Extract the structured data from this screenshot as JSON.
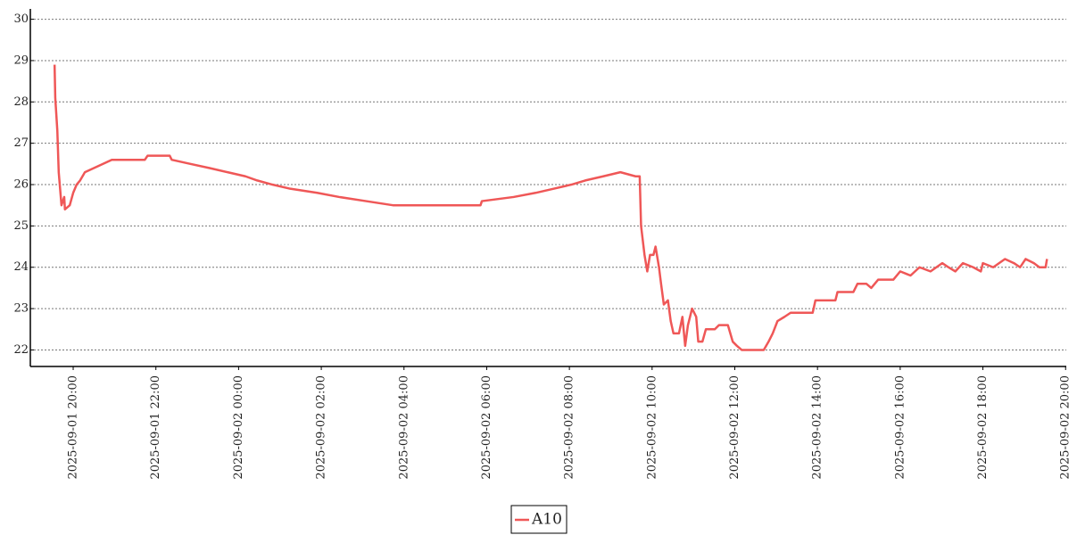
{
  "chart_data": {
    "type": "line",
    "x": [
      "2025-09-01 19:33",
      "2025-09-01 19:34",
      "2025-09-01 19:37",
      "2025-09-01 19:39",
      "2025-09-01 19:41",
      "2025-09-01 19:43",
      "2025-09-01 19:47",
      "2025-09-01 19:48",
      "2025-09-01 19:55",
      "2025-09-01 20:00",
      "2025-09-01 20:05",
      "2025-09-01 20:10",
      "2025-09-01 20:17",
      "2025-09-01 20:30",
      "2025-09-01 20:43",
      "2025-09-01 20:56",
      "2025-09-01 21:44",
      "2025-09-01 21:48",
      "2025-09-01 22:20",
      "2025-09-01 22:23",
      "2025-09-01 22:50",
      "2025-09-01 23:18",
      "2025-09-01 23:44",
      "2025-09-02 00:10",
      "2025-09-02 00:27",
      "2025-09-02 00:49",
      "2025-09-02 01:15",
      "2025-09-02 01:54",
      "2025-09-02 02:26",
      "2025-09-02 03:05",
      "2025-09-02 03:44",
      "2025-09-02 05:51",
      "2025-09-02 05:53",
      "2025-09-02 06:39",
      "2025-09-02 07:11",
      "2025-09-02 07:37",
      "2025-09-02 08:03",
      "2025-09-02 08:23",
      "2025-09-02 08:49",
      "2025-09-02 09:14",
      "2025-09-02 09:36",
      "2025-09-02 09:42",
      "2025-09-02 09:44",
      "2025-09-02 09:49",
      "2025-09-02 09:53",
      "2025-09-02 09:57",
      "2025-09-02 10:02",
      "2025-09-02 10:05",
      "2025-09-02 10:10",
      "2025-09-02 10:13",
      "2025-09-02 10:17",
      "2025-09-02 10:23",
      "2025-09-02 10:27",
      "2025-09-02 10:31",
      "2025-09-02 10:39",
      "2025-09-02 10:44",
      "2025-09-02 10:48",
      "2025-09-02 10:52",
      "2025-09-02 10:58",
      "2025-09-02 11:04",
      "2025-09-02 11:07",
      "2025-09-02 11:13",
      "2025-09-02 11:18",
      "2025-09-02 11:31",
      "2025-09-02 11:37",
      "2025-09-02 11:50",
      "2025-09-02 11:57",
      "2025-09-02 12:03",
      "2025-09-02 12:10",
      "2025-09-02 12:42",
      "2025-09-02 12:49",
      "2025-09-02 12:55",
      "2025-09-02 13:02",
      "2025-09-02 13:12",
      "2025-09-02 13:21",
      "2025-09-02 13:53",
      "2025-09-02 13:57",
      "2025-09-02 14:26",
      "2025-09-02 14:29",
      "2025-09-02 14:52",
      "2025-09-02 14:58",
      "2025-09-02 15:11",
      "2025-09-02 15:18",
      "2025-09-02 15:28",
      "2025-09-02 15:50",
      "2025-09-02 16:00",
      "2025-09-02 16:15",
      "2025-09-02 16:28",
      "2025-09-02 16:44",
      "2025-09-02 17:01",
      "2025-09-02 17:10",
      "2025-09-02 17:20",
      "2025-09-02 17:31",
      "2025-09-02 17:46",
      "2025-09-02 17:57",
      "2025-09-02 18:00",
      "2025-09-02 18:15",
      "2025-09-02 18:32",
      "2025-09-02 18:45",
      "2025-09-02 18:54",
      "2025-09-02 19:02",
      "2025-09-02 19:14",
      "2025-09-02 19:22",
      "2025-09-02 19:31",
      "2025-09-02 19:33"
    ],
    "series": [
      {
        "name": "A10",
        "color": "#ef5757",
        "values": [
          28.9,
          28.1,
          27.3,
          26.3,
          25.9,
          25.5,
          25.7,
          25.4,
          25.5,
          25.8,
          26.0,
          26.1,
          26.3,
          26.4,
          26.5,
          26.6,
          26.6,
          26.7,
          26.7,
          26.6,
          26.5,
          26.4,
          26.3,
          26.2,
          26.1,
          26.0,
          25.9,
          25.8,
          25.7,
          25.6,
          25.5,
          25.5,
          25.6,
          25.7,
          25.8,
          25.9,
          26.0,
          26.1,
          26.2,
          26.3,
          26.2,
          26.2,
          25.0,
          24.3,
          23.9,
          24.3,
          24.3,
          24.5,
          24.0,
          23.6,
          23.1,
          23.2,
          22.7,
          22.4,
          22.4,
          22.8,
          22.1,
          22.6,
          23.0,
          22.8,
          22.2,
          22.2,
          22.5,
          22.5,
          22.6,
          22.6,
          22.2,
          22.1,
          22.0,
          22.0,
          22.2,
          22.4,
          22.7,
          22.8,
          22.9,
          22.9,
          23.2,
          23.2,
          23.4,
          23.4,
          23.6,
          23.6,
          23.5,
          23.7,
          23.7,
          23.9,
          23.8,
          24.0,
          23.9,
          24.1,
          24.0,
          23.9,
          24.1,
          24.0,
          23.9,
          24.1,
          24.0,
          24.2,
          24.1,
          24.0,
          24.2,
          24.1,
          24.0,
          24.0,
          24.2
        ]
      }
    ],
    "xlim": [
      "2025-09-01 19:03",
      "2025-09-02 20:01"
    ],
    "xticks": [
      "2025-09-01 20:00",
      "2025-09-01 22:00",
      "2025-09-02 00:00",
      "2025-09-02 02:00",
      "2025-09-02 04:00",
      "2025-09-02 06:00",
      "2025-09-02 08:00",
      "2025-09-02 10:00",
      "2025-09-02 12:00",
      "2025-09-02 14:00",
      "2025-09-02 16:00",
      "2025-09-02 18:00",
      "2025-09-02 20:00"
    ],
    "ylim": [
      21.6,
      30.25
    ],
    "yticks": [
      22,
      23,
      24,
      25,
      26,
      27,
      28,
      29,
      30
    ],
    "grid": true,
    "legend": "bottom"
  }
}
